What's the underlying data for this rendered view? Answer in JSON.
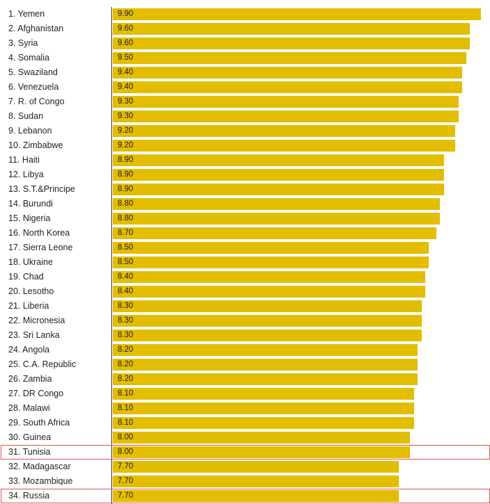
{
  "colors": {
    "bar": "#e3bd00",
    "highlight_border": "#d9534f",
    "axis": "#333333"
  },
  "chart_data": {
    "type": "bar",
    "orientation": "horizontal",
    "xlim": [
      0,
      9.9
    ],
    "highlighted": [
      "31. Tunisia",
      "34. Russia"
    ],
    "categories": [
      "1. Yemen",
      "2. Afghanistan",
      "3. Syria",
      "4. Somalia",
      "5. Swaziland",
      "6. Venezuela",
      "7. R. of Congo",
      "8. Sudan",
      "9. Lebanon",
      "10. Zimbabwe",
      "11. Haiti",
      "12. Libya",
      "13. S.T.&Principe",
      "14. Burundi",
      "15. Nigeria",
      "16. North Korea",
      "17. Sierra Leone",
      "18. Ukraine",
      "19. Chad",
      "20. Lesotho",
      "21. Liberia",
      "22. Micronesia",
      "23. Sri Lanka",
      "24. Angola",
      "25. C.A. Republic",
      "26. Zambia",
      "27. DR Congo",
      "28. Malawi",
      "29. South Africa",
      "30. Guinea",
      "31. Tunisia",
      "32. Madagascar",
      "33. Mozambique",
      "34. Russia"
    ],
    "values": [
      9.9,
      9.6,
      9.6,
      9.5,
      9.4,
      9.4,
      9.3,
      9.3,
      9.2,
      9.2,
      8.9,
      8.9,
      8.9,
      8.8,
      8.8,
      8.7,
      8.5,
      8.5,
      8.4,
      8.4,
      8.3,
      8.3,
      8.3,
      8.2,
      8.2,
      8.2,
      8.1,
      8.1,
      8.1,
      8.0,
      8.0,
      7.7,
      7.7,
      7.7
    ],
    "value_labels": [
      "9.90",
      "9.60",
      "9.60",
      "9.50",
      "9.40",
      "9.40",
      "9.30",
      "9.30",
      "9.20",
      "9.20",
      "8.90",
      "8.90",
      "8.90",
      "8.80",
      "8.80",
      "8.70",
      "8.50",
      "8.50",
      "8.40",
      "8.40",
      "8.30",
      "8.30",
      "8.30",
      "8.20",
      "8.20",
      "8.20",
      "8.10",
      "8.10",
      "8.10",
      "8.00",
      "8.00",
      "7.70",
      "7.70",
      "7.70"
    ]
  }
}
